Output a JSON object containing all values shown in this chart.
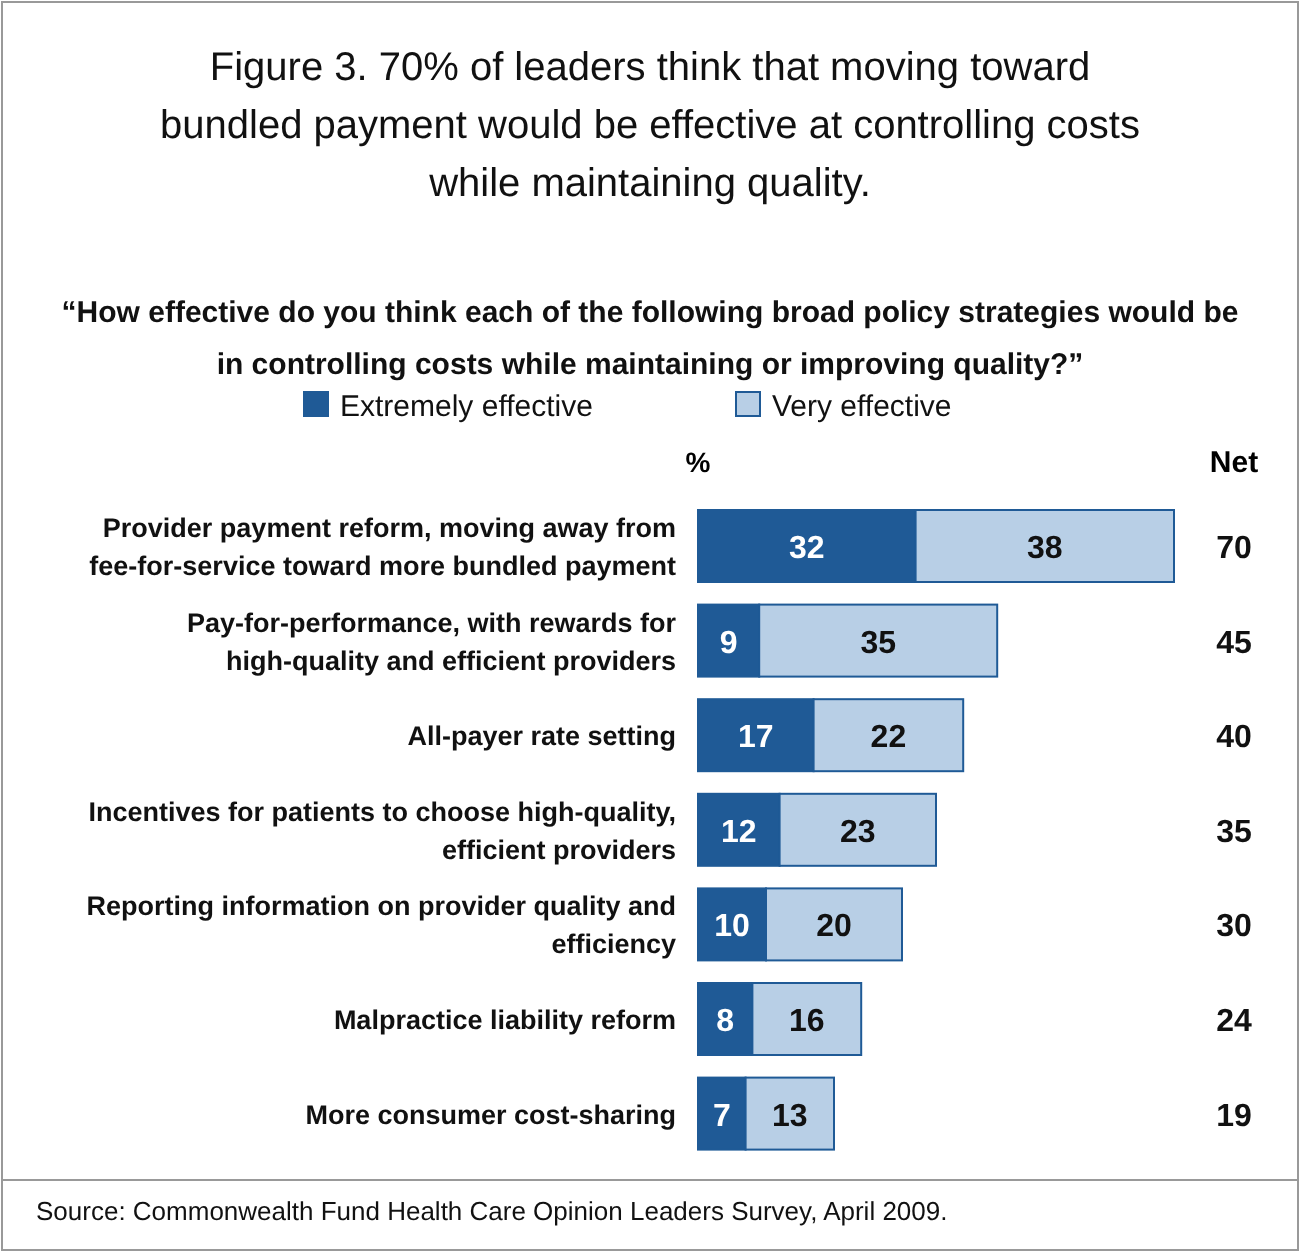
{
  "chart_data": {
    "type": "bar",
    "orientation": "horizontal",
    "stacked": true,
    "data_labels": true,
    "legend": "top",
    "title": "Figure 3. 70% of leaders think that moving toward bundled payment would be effective at controlling costs while maintaining quality.",
    "subtitle": "“How effective do you think each of the following broad policy strategies would be in controlling costs while maintaining or improving quality?”",
    "xlabel": "%",
    "categories": [
      "Provider payment reform, moving away from fee-for-service toward more bundled payment",
      "Pay-for-performance, with rewards for high-quality and efficient providers",
      "All-payer rate setting",
      "Incentives for patients to choose high-quality, efficient providers",
      "Reporting information on provider quality and efficiency",
      "Malpractice liability reform",
      "More consumer cost-sharing"
    ],
    "series": [
      {
        "name": "Extremely effective",
        "color": "#1f5a96",
        "values": [
          32,
          9,
          17,
          12,
          10,
          8,
          7
        ]
      },
      {
        "name": "Very effective",
        "color": "#b8cfe6",
        "values": [
          38,
          35,
          22,
          23,
          20,
          16,
          13
        ]
      }
    ],
    "annotations": [
      "Net",
      "70",
      "45",
      "40",
      "35",
      "30",
      "24",
      "19",
      "Source: Commonwealth Fund Health Care Opinion Leaders Survey, April 2009."
    ]
  }
}
